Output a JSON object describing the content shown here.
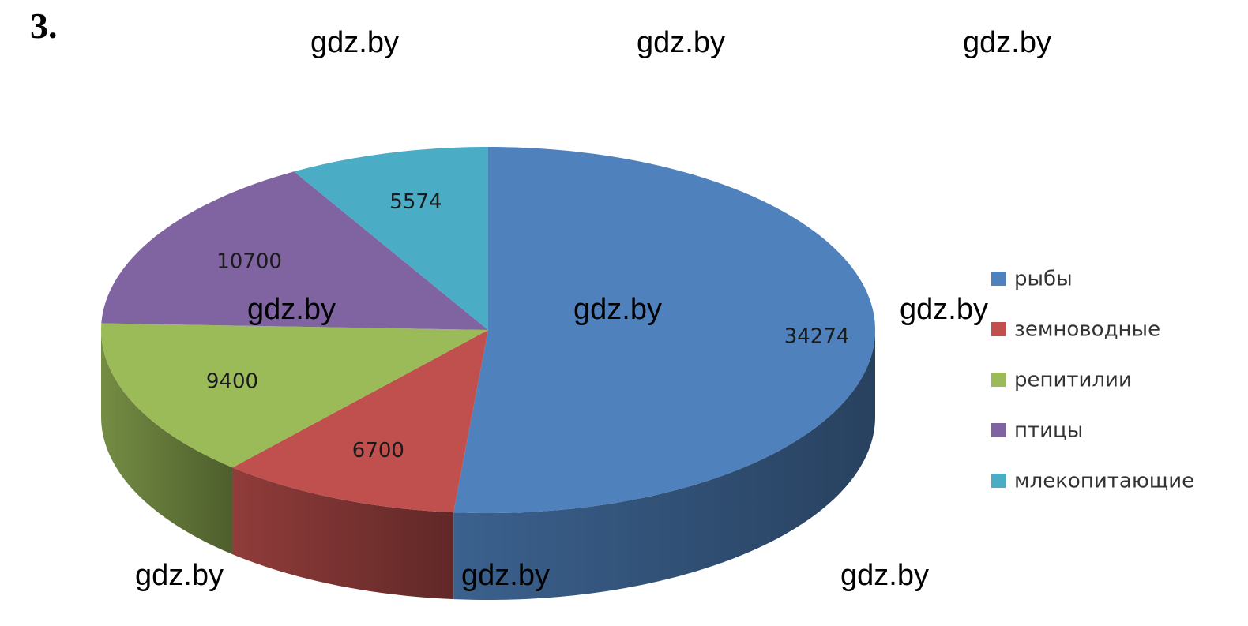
{
  "label": "3.",
  "watermarks": [
    "gdz.by",
    "gdz.by",
    "gdz.by",
    "gdz.by",
    "gdz.by",
    "gdz.by",
    "gdz.by",
    "gdz.by",
    "gdz.by"
  ],
  "chart_data": {
    "type": "pie",
    "categories": [
      "рыбы",
      "земноводные",
      "репитилии",
      "птицы",
      "млекопитающие"
    ],
    "values": [
      34274,
      6700,
      9400,
      10700,
      5574
    ],
    "colors": [
      "#4f81bd",
      "#c0504d",
      "#9bbb59",
      "#8064a2",
      "#4bacc6"
    ],
    "legend": "right"
  }
}
